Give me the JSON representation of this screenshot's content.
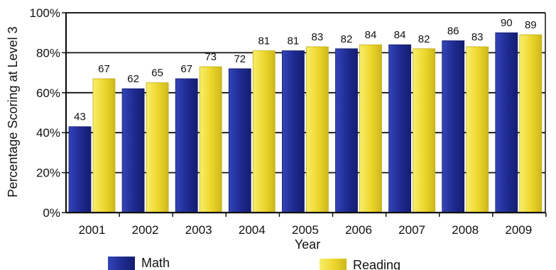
{
  "chart_data": {
    "type": "bar",
    "categories": [
      "2001",
      "2002",
      "2003",
      "2004",
      "2005",
      "2006",
      "2007",
      "2008",
      "2009"
    ],
    "series": [
      {
        "name": "Math",
        "values": [
          43,
          62,
          67,
          72,
          81,
          82,
          84,
          86,
          90
        ]
      },
      {
        "name": "Reading",
        "values": [
          67,
          65,
          73,
          81,
          83,
          84,
          82,
          83,
          89
        ]
      }
    ],
    "data_labels": {
      "Math": [
        "43",
        "62",
        "67",
        "72",
        "81",
        "82",
        "84",
        "86",
        "90"
      ],
      "Reading": [
        "67",
        "65",
        "73",
        "81",
        "83",
        "84",
        "82",
        "83",
        "89"
      ]
    },
    "xlabel": "Year",
    "ylabel": "Percentage Scoring at Level 3",
    "ylim": [
      0,
      100
    ],
    "yticks": [
      "0%",
      "20%",
      "40%",
      "60%",
      "80%",
      "100%"
    ],
    "grid": true,
    "legend_position": "bottom",
    "colors": {
      "Math": "#24309b",
      "Reading": "#f2e13a",
      "axes": "#111111",
      "background": "#ffffff"
    }
  }
}
